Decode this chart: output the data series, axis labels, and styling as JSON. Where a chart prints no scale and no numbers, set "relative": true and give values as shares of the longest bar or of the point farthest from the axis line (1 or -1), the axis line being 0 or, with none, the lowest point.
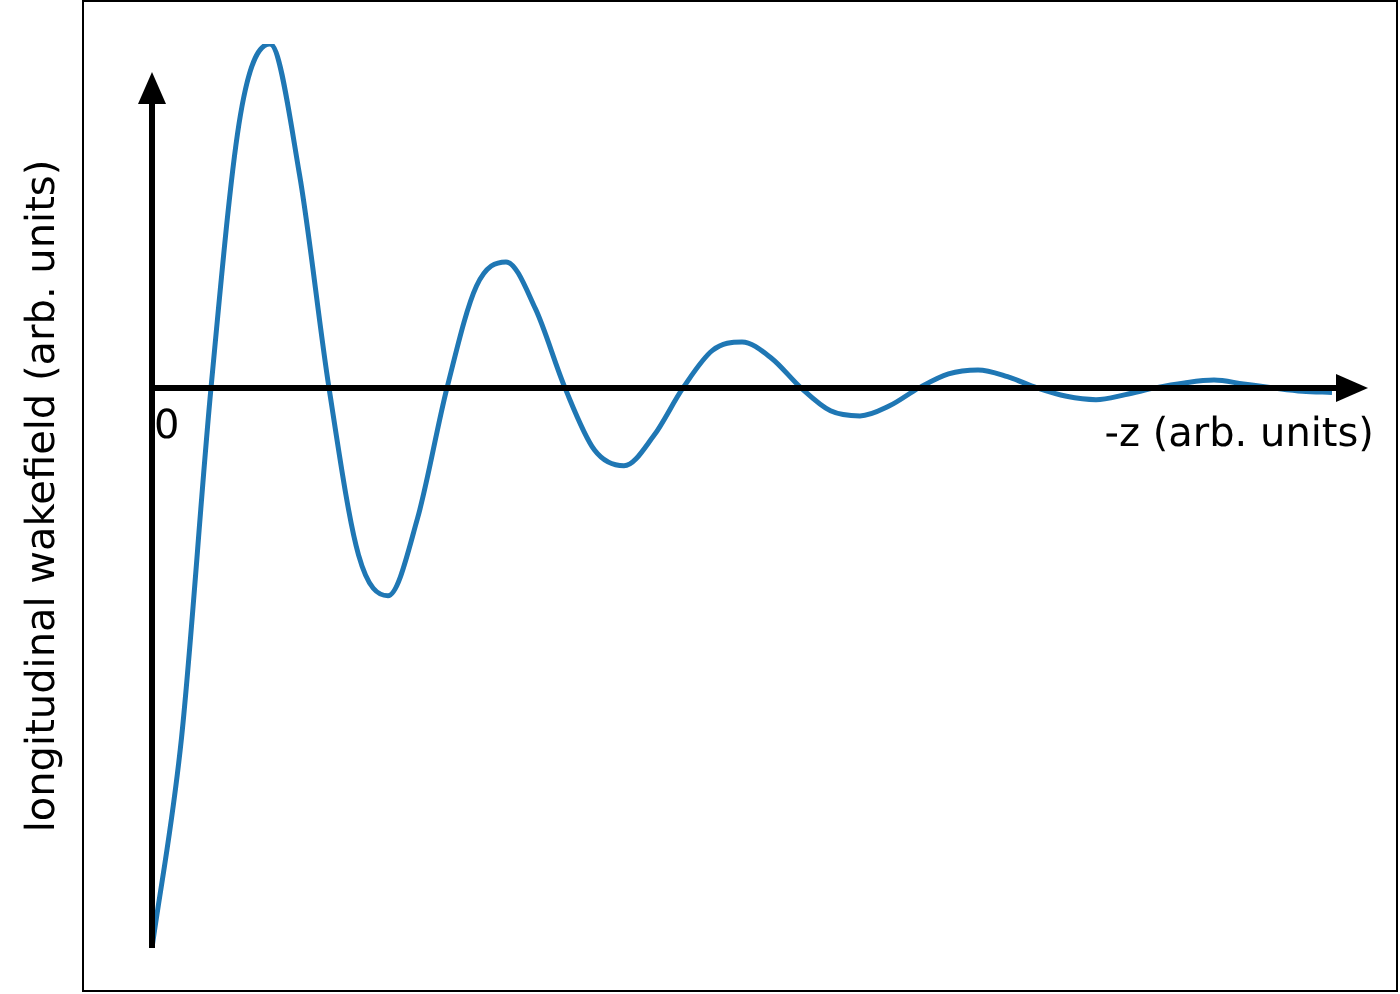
{
  "chart_data": {
    "type": "line",
    "relative": true,
    "xlabel": "-z (arb. units)",
    "ylabel": "longitudinal wakefield (arb. units)",
    "annotations": [
      "0"
    ],
    "categories": [
      null,
      null,
      null,
      null,
      null,
      null,
      null,
      null,
      null,
      null,
      null,
      null,
      null,
      null,
      null,
      null,
      null,
      null,
      null,
      null,
      null,
      null,
      null,
      null,
      null,
      null,
      null,
      null,
      null,
      null,
      null,
      null,
      null,
      null,
      null,
      null,
      null,
      null,
      null,
      null,
      null
    ],
    "series": [
      {
        "color": "#1f77b4",
        "values": [
          -1,
          -0.625,
          0,
          0.488,
          0.614,
          0.381,
          0,
          -0.298,
          -0.371,
          -0.233,
          0,
          0.182,
          0.225,
          0.141,
          0,
          -0.111,
          -0.139,
          -0.086,
          0,
          0.067,
          0.082,
          0.053,
          0,
          -0.041,
          -0.05,
          -0.032,
          0,
          0.025,
          0.032,
          0.02,
          0,
          -0.015,
          -0.021,
          -0.012,
          0,
          0.009,
          0.014,
          0.007,
          0,
          -0.006,
          -0.008
        ]
      }
    ],
    "grid": false,
    "legend": false,
    "marker": "none",
    "line_style": "solid"
  }
}
